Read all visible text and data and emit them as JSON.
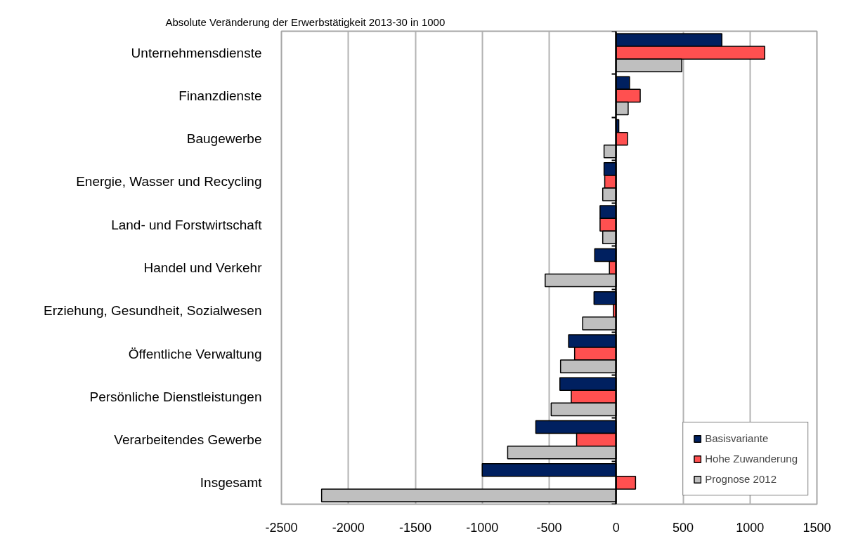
{
  "chart_data": {
    "type": "bar",
    "orientation": "horizontal",
    "title": "Absolute Veränderung der Erwerbstätigkeit 2013-30 in 1000",
    "categories": [
      "Unternehmensdienste",
      "Finanzdienste",
      "Baugewerbe",
      "Energie, Wasser und Recycling",
      "Land- und Forstwirtschaft",
      "Handel und Verkehr",
      "Erziehung, Gesundheit, Sozialwesen",
      "Öffentliche Verwaltung",
      "Persönliche Dienstleistungen",
      "Verarbeitendes Gewerbe",
      "Insgesamt"
    ],
    "series": [
      {
        "name": "Basisvariante",
        "color": "#002060",
        "values": [
          790,
          100,
          20,
          -90,
          -120,
          -160,
          -165,
          -355,
          -420,
          -600,
          -1000
        ]
      },
      {
        "name": "Hohe Zuwanderung",
        "color": "#ff5050",
        "values": [
          1110,
          180,
          85,
          -85,
          -120,
          -50,
          -20,
          -310,
          -335,
          -295,
          145
        ]
      },
      {
        "name": "Prognose 2012",
        "color": "#bfbfbf",
        "values": [
          490,
          90,
          -90,
          -100,
          -100,
          -530,
          -250,
          -415,
          -485,
          -810,
          -2200
        ]
      }
    ],
    "xlim": [
      -2500,
      1500
    ],
    "xticks": [
      -2500,
      -2000,
      -1500,
      -1000,
      -500,
      0,
      500,
      1000,
      1500
    ],
    "grid": "x",
    "legend": "bottom right"
  }
}
